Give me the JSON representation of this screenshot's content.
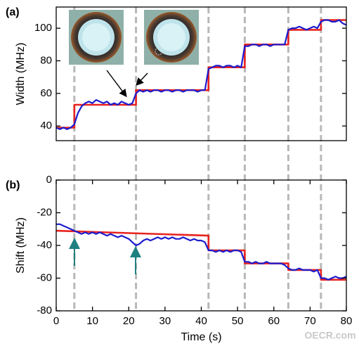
{
  "watermark": "OECR.com",
  "chart_data": [
    {
      "type": "line",
      "panel_label": "(a)",
      "ylabel": "Width (MHz)",
      "xlim": [
        0,
        80
      ],
      "ylim": [
        31,
        113
      ],
      "yticks": [
        40,
        60,
        80,
        100
      ],
      "vlines": [
        5,
        22,
        42,
        52,
        64,
        73
      ],
      "series": [
        {
          "color": "#e8231f",
          "x": [
            0,
            5,
            5,
            22,
            22,
            42,
            42,
            52,
            52,
            64,
            64,
            73,
            73,
            80
          ],
          "values": [
            39,
            39,
            53,
            53,
            62,
            62,
            76,
            76,
            90,
            90,
            99,
            99,
            105,
            105
          ]
        },
        {
          "color": "#1c1ccf",
          "x": [
            0,
            1,
            2,
            3,
            4,
            5,
            6,
            7,
            8,
            9,
            10,
            11,
            12,
            13,
            14,
            15,
            16,
            17,
            18,
            19,
            20,
            21,
            22,
            23,
            24,
            25,
            26,
            27,
            28,
            29,
            30,
            31,
            32,
            33,
            34,
            35,
            36,
            37,
            38,
            39,
            40,
            41,
            42,
            43,
            44,
            45,
            46,
            47,
            48,
            49,
            50,
            51,
            52,
            53,
            54,
            55,
            56,
            57,
            58,
            59,
            60,
            61,
            62,
            63,
            64,
            65,
            66,
            67,
            68,
            69,
            70,
            71,
            72,
            73,
            74,
            75,
            76,
            77,
            78,
            79,
            80
          ],
          "values": [
            39,
            38,
            39,
            38,
            39,
            41,
            48,
            52,
            54,
            55,
            54,
            56,
            55,
            54,
            55,
            53,
            54,
            53,
            55,
            54,
            53,
            54,
            60,
            62,
            61,
            62,
            61,
            62,
            62,
            61,
            62,
            62,
            61,
            62,
            62,
            61,
            62,
            62,
            62,
            61,
            62,
            62,
            75,
            76,
            77,
            77,
            76,
            77,
            77,
            76,
            77,
            76,
            89,
            89,
            90,
            90,
            89,
            90,
            90,
            89,
            90,
            90,
            90,
            90,
            99,
            100,
            100,
            101,
            100,
            99,
            100,
            101,
            100,
            104,
            105,
            105,
            104,
            104,
            105,
            103,
            102
          ]
        }
      ]
    },
    {
      "type": "line",
      "panel_label": "(b)",
      "ylabel": "Shift (MHz)",
      "xlabel": "Time (s)",
      "xlim": [
        0,
        80
      ],
      "xticks": [
        0,
        10,
        20,
        30,
        40,
        50,
        60,
        70,
        80
      ],
      "ylim": [
        -80,
        0
      ],
      "yticks": [
        -80,
        -60,
        -40,
        -20,
        0
      ],
      "series": [
        {
          "color": "#e8231f",
          "x": [
            0,
            42,
            42,
            52,
            52,
            64,
            64,
            73,
            73,
            80
          ],
          "values": [
            -31,
            -34,
            -43,
            -43,
            -51,
            -51,
            -55,
            -55,
            -61,
            -61
          ]
        },
        {
          "color": "#1c1ccf",
          "x": [
            0,
            1,
            2,
            3,
            4,
            5,
            6,
            7,
            8,
            9,
            10,
            11,
            12,
            13,
            14,
            15,
            16,
            17,
            18,
            19,
            20,
            21,
            22,
            23,
            24,
            25,
            26,
            27,
            28,
            29,
            30,
            31,
            32,
            33,
            34,
            35,
            36,
            37,
            38,
            39,
            40,
            41,
            42,
            43,
            44,
            45,
            46,
            47,
            48,
            49,
            50,
            51,
            52,
            53,
            54,
            55,
            56,
            57,
            58,
            59,
            60,
            61,
            62,
            63,
            64,
            65,
            66,
            67,
            68,
            69,
            70,
            71,
            72,
            73,
            74,
            75,
            76,
            77,
            78,
            79,
            80
          ],
          "values": [
            -27,
            -27,
            -28,
            -29,
            -30,
            -31,
            -32,
            -33,
            -32,
            -33,
            -32,
            -33,
            -32,
            -33,
            -34,
            -33,
            -34,
            -35,
            -34,
            -35,
            -36,
            -38,
            -40,
            -39,
            -37,
            -36,
            -37,
            -36,
            -35,
            -36,
            -35,
            -36,
            -35,
            -36,
            -36,
            -35,
            -36,
            -37,
            -36,
            -37,
            -37,
            -38,
            -43,
            -43,
            -44,
            -43,
            -44,
            -43,
            -44,
            -43,
            -43,
            -44,
            -50,
            -50,
            -51,
            -50,
            -51,
            -51,
            -50,
            -51,
            -51,
            -51,
            -51,
            -52,
            -54,
            -55,
            -55,
            -54,
            -55,
            -55,
            -55,
            -56,
            -55,
            -60,
            -60,
            -61,
            -60,
            -59,
            -60,
            -60,
            -59
          ]
        }
      ]
    }
  ]
}
